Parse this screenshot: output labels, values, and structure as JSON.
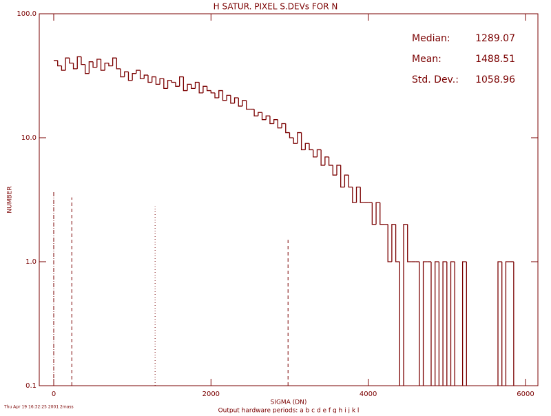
{
  "chart_data": {
    "type": "histogram",
    "title": "H SATUR. PIXEL S.DEVs FOR N",
    "x_label": "SIGMA (DN)",
    "y_label": "NUMBER",
    "footer": "Thu Apr 19 16:32:25 2001 2mass",
    "subcaption": "Output hardware periods: a b c d e f g h i j k l",
    "color": "#7a0000",
    "log_y": true,
    "xlim": [
      -184,
      6158
    ],
    "ylim": [
      0.1,
      100
    ],
    "xticks": [
      0,
      2000,
      4000,
      6000
    ],
    "yticks": [
      0.1,
      {
        "value": 1,
        "label": "1.0"
      },
      {
        "value": 10,
        "label": "10.0"
      },
      {
        "value": 100,
        "label": "100.0"
      }
    ],
    "stats": [
      {
        "label": "Median:",
        "value": 1289.07
      },
      {
        "label": "Mean:",
        "value": 1488.51
      },
      {
        "label": "Std. Dev.:",
        "value": 1058.96
      }
    ],
    "markers": [
      {
        "x": 0,
        "top": 3.7,
        "style": "dashdot"
      },
      {
        "x": 230,
        "top": 3.3,
        "style": "dashed"
      },
      {
        "x": 1289.07,
        "top": 2.8,
        "style": "dotted"
      },
      {
        "x": 2980,
        "top": 1.5,
        "style": "dashed"
      }
    ],
    "bins": [
      0,
      50,
      100,
      150,
      200,
      250,
      300,
      350,
      400,
      450,
      500,
      550,
      600,
      650,
      700,
      750,
      800,
      850,
      900,
      950,
      1000,
      1050,
      1100,
      1150,
      1200,
      1250,
      1300,
      1350,
      1400,
      1450,
      1500,
      1550,
      1600,
      1650,
      1700,
      1750,
      1800,
      1850,
      1900,
      1950,
      2000,
      2050,
      2100,
      2150,
      2200,
      2250,
      2300,
      2350,
      2400,
      2450,
      2500,
      2550,
      2600,
      2650,
      2700,
      2750,
      2800,
      2850,
      2900,
      2950,
      3000,
      3050,
      3100,
      3150,
      3200,
      3250,
      3300,
      3350,
      3400,
      3450,
      3500,
      3550,
      3600,
      3650,
      3700,
      3750,
      3800,
      3850,
      3900,
      3950,
      4000,
      4050,
      4100,
      4150,
      4200,
      4250,
      4300,
      4350,
      4400,
      4450,
      4500,
      4550,
      4600,
      4650,
      4700,
      4750,
      4800,
      4850,
      4900,
      4950,
      5000,
      5050,
      5100,
      5150,
      5200,
      5250,
      5300,
      5350,
      5400,
      5450,
      5500,
      5550,
      5600,
      5650,
      5700,
      5750,
      5800,
      5850,
      5900
    ],
    "counts": [
      42,
      38,
      35,
      44,
      40,
      36,
      45,
      39,
      33,
      41,
      37,
      43,
      35,
      40,
      38,
      44,
      36,
      31,
      34,
      29,
      33,
      35,
      30,
      32,
      28,
      31,
      27,
      30,
      25,
      29,
      28,
      26,
      31,
      24,
      27,
      25,
      28,
      23,
      26,
      24,
      23,
      21,
      24,
      20,
      22,
      19,
      21,
      18,
      20,
      17,
      17,
      15,
      16,
      14,
      15,
      13,
      14,
      12,
      13,
      11,
      10,
      9,
      11,
      8,
      9,
      8,
      7,
      8,
      6,
      7,
      6,
      5,
      6,
      4,
      5,
      4,
      3,
      4,
      3,
      3,
      3,
      2,
      3,
      2,
      2,
      1,
      2,
      1,
      0,
      2,
      1,
      1,
      1,
      0,
      1,
      1,
      0,
      1,
      0,
      1,
      0,
      1,
      0,
      0,
      1,
      0,
      0,
      0,
      0,
      0,
      0,
      0,
      0,
      1,
      0,
      1,
      1,
      0
    ]
  }
}
